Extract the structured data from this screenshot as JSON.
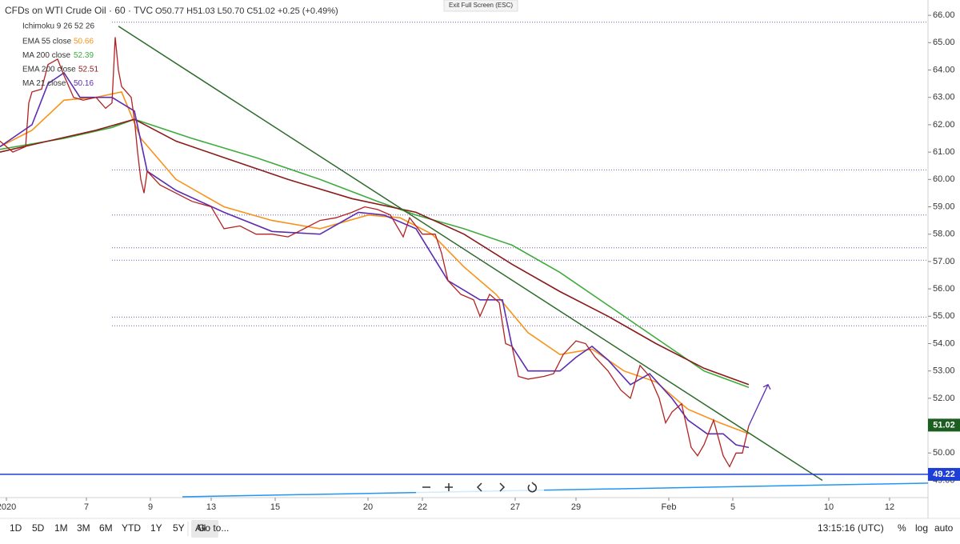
{
  "chart_data": {
    "type": "line",
    "title": "CFDs on WTI Crude Oil · 60 · TVC",
    "ohlc": "O50.77 H51.03 L50.70 C51.02 +0.25 (+0.49%)",
    "indicator": "Ichimoku 9 26 52 26",
    "xlim": [
      0,
      290
    ],
    "ylim": [
      48.37,
      66.56
    ],
    "xticks": [
      {
        "value": 2,
        "label": "2020"
      },
      {
        "value": 27,
        "label": "7"
      },
      {
        "value": 47,
        "label": "9"
      },
      {
        "value": 66,
        "label": "13"
      },
      {
        "value": 86,
        "label": "15"
      },
      {
        "value": 115,
        "label": "20"
      },
      {
        "value": 132,
        "label": "22"
      },
      {
        "value": 161,
        "label": "27"
      },
      {
        "value": 180,
        "label": "29"
      },
      {
        "value": 209,
        "label": "Feb"
      },
      {
        "value": 229,
        "label": "5"
      },
      {
        "value": 259,
        "label": "10"
      },
      {
        "value": 278,
        "label": "12"
      }
    ],
    "yticks": [
      {
        "value": 49,
        "label": "49.00"
      },
      {
        "value": 50,
        "label": "50.00"
      },
      {
        "value": 51,
        "label": "51.00"
      },
      {
        "value": 52,
        "label": "52.00"
      },
      {
        "value": 53,
        "label": "53.00"
      },
      {
        "value": 54,
        "label": "54.00"
      },
      {
        "value": 55,
        "label": "55.00"
      },
      {
        "value": 56,
        "label": "56.00"
      },
      {
        "value": 57,
        "label": "57.00"
      },
      {
        "value": 58,
        "label": "58.00"
      },
      {
        "value": 59,
        "label": "59.00"
      },
      {
        "value": 60,
        "label": "60.00"
      },
      {
        "value": 61,
        "label": "61.00"
      },
      {
        "value": 62,
        "label": "62.00"
      },
      {
        "value": 63,
        "label": "63.00"
      },
      {
        "value": 64,
        "label": "64.00"
      },
      {
        "value": 65,
        "label": "65.00"
      },
      {
        "value": 66,
        "label": "66.00"
      }
    ],
    "price": {
      "color": "#b22222",
      "x": [
        0,
        4,
        8,
        9,
        10,
        13,
        15,
        18,
        20,
        23,
        26,
        30,
        33,
        35,
        36,
        37,
        38,
        41,
        42,
        43,
        44,
        45,
        46,
        50,
        55,
        60,
        66,
        70,
        75,
        80,
        85,
        90,
        95,
        100,
        105,
        110,
        114,
        118,
        122,
        126,
        128,
        132,
        136,
        138,
        140,
        144,
        148,
        150,
        153,
        156,
        158,
        160,
        162,
        165,
        170,
        173,
        176,
        180,
        183,
        186,
        190,
        194,
        197,
        200,
        203,
        206,
        208,
        210,
        213,
        216,
        218,
        220,
        223,
        226,
        228,
        230,
        232,
        234
      ],
      "values": [
        61.4,
        61.0,
        61.2,
        62.8,
        63.2,
        63.3,
        64.2,
        64.4,
        63.8,
        63.0,
        62.9,
        63.0,
        62.6,
        62.8,
        65.2,
        64.0,
        63.4,
        63.0,
        62.2,
        61.0,
        60.0,
        59.5,
        60.3,
        59.8,
        59.5,
        59.2,
        59.0,
        58.2,
        58.3,
        58.0,
        58.0,
        57.9,
        58.2,
        58.5,
        58.6,
        58.8,
        59.0,
        58.9,
        58.7,
        57.9,
        58.6,
        58.0,
        58.0,
        57.3,
        56.3,
        55.8,
        55.6,
        55.0,
        55.8,
        55.5,
        54.0,
        53.9,
        52.8,
        52.7,
        52.8,
        52.9,
        53.6,
        54.1,
        54.0,
        53.5,
        53.0,
        52.3,
        52.0,
        53.2,
        52.8,
        52.0,
        51.1,
        51.5,
        51.8,
        50.2,
        49.9,
        50.3,
        51.2,
        49.9,
        49.5,
        50.0,
        50.0,
        51.0
      ],
      "last": 51.02
    },
    "series": [
      {
        "name": "EMA 55 close",
        "color": "#f7931a",
        "legend_value": 50.66,
        "x": [
          0,
          10,
          20,
          30,
          38,
          44,
          55,
          70,
          85,
          100,
          115,
          125,
          135,
          145,
          155,
          165,
          175,
          185,
          195,
          205,
          215,
          225,
          234
        ],
        "values": [
          61.2,
          61.8,
          62.9,
          63.0,
          63.2,
          61.5,
          60.0,
          59.0,
          58.5,
          58.2,
          58.7,
          58.6,
          58.0,
          56.8,
          55.8,
          54.4,
          53.6,
          53.8,
          53.0,
          52.6,
          51.6,
          51.1,
          50.7
        ]
      },
      {
        "name": "MA 200 close",
        "color": "#3dac3d",
        "legend_value": 52.39,
        "x": [
          0,
          20,
          35,
          42,
          60,
          80,
          100,
          118,
          130,
          145,
          160,
          175,
          190,
          205,
          220,
          234
        ],
        "values": [
          61.1,
          61.5,
          61.9,
          62.2,
          61.5,
          60.8,
          60.0,
          59.2,
          58.7,
          58.2,
          57.6,
          56.6,
          55.4,
          54.2,
          53.0,
          52.4
        ]
      },
      {
        "name": "EMA 200 close",
        "color": "#8b1a1a",
        "legend_value": 52.51,
        "x": [
          0,
          15,
          30,
          42,
          55,
          70,
          90,
          110,
          130,
          145,
          160,
          175,
          190,
          205,
          220,
          234
        ],
        "values": [
          61.0,
          61.4,
          61.8,
          62.2,
          61.4,
          60.8,
          60.0,
          59.3,
          58.8,
          58.0,
          56.9,
          55.9,
          55.0,
          54.0,
          53.1,
          52.5
        ]
      },
      {
        "name": "MA 21 close",
        "color": "#5b2db3",
        "legend_value": 50.16,
        "x": [
          0,
          10,
          15,
          20,
          25,
          35,
          42,
          46,
          55,
          70,
          85,
          100,
          112,
          120,
          130,
          140,
          150,
          157,
          160,
          165,
          175,
          180,
          185,
          190,
          197,
          203,
          210,
          215,
          221,
          226,
          230,
          234
        ],
        "values": [
          61.2,
          62.0,
          63.5,
          63.9,
          63.0,
          63.0,
          62.5,
          60.3,
          59.6,
          58.8,
          58.1,
          58.0,
          58.8,
          58.7,
          58.2,
          56.3,
          55.6,
          55.6,
          53.9,
          53.0,
          53.0,
          53.5,
          53.9,
          53.4,
          52.5,
          52.9,
          52.0,
          51.2,
          50.7,
          50.7,
          50.3,
          50.2
        ]
      }
    ],
    "trendlines": [
      {
        "x": [
          37,
          257
        ],
        "values": [
          65.6,
          49.0
        ],
        "color": "#2e6b2a"
      },
      {
        "x": [
          57,
          290
        ],
        "values": [
          48.4,
          48.9
        ],
        "color": "#2196f3"
      },
      {
        "x": [
          234,
          240
        ],
        "values": [
          51.0,
          52.5
        ],
        "color": "#5b2db3",
        "arrow": true
      }
    ],
    "levels": [
      65.75,
      60.35,
      58.7,
      57.5,
      57.05,
      54.97,
      54.65
    ],
    "hline": {
      "value": 49.22,
      "color": "#1e3ed8"
    }
  },
  "toolbar": {
    "ranges": [
      "1D",
      "5D",
      "1M",
      "3M",
      "6M",
      "YTD",
      "1Y",
      "5Y",
      "All"
    ],
    "goto": "Go to...",
    "clock": "13:15:16 (UTC)",
    "options": [
      "%",
      "log",
      "auto"
    ],
    "exit": "Exit Full Screen (ESC)"
  }
}
